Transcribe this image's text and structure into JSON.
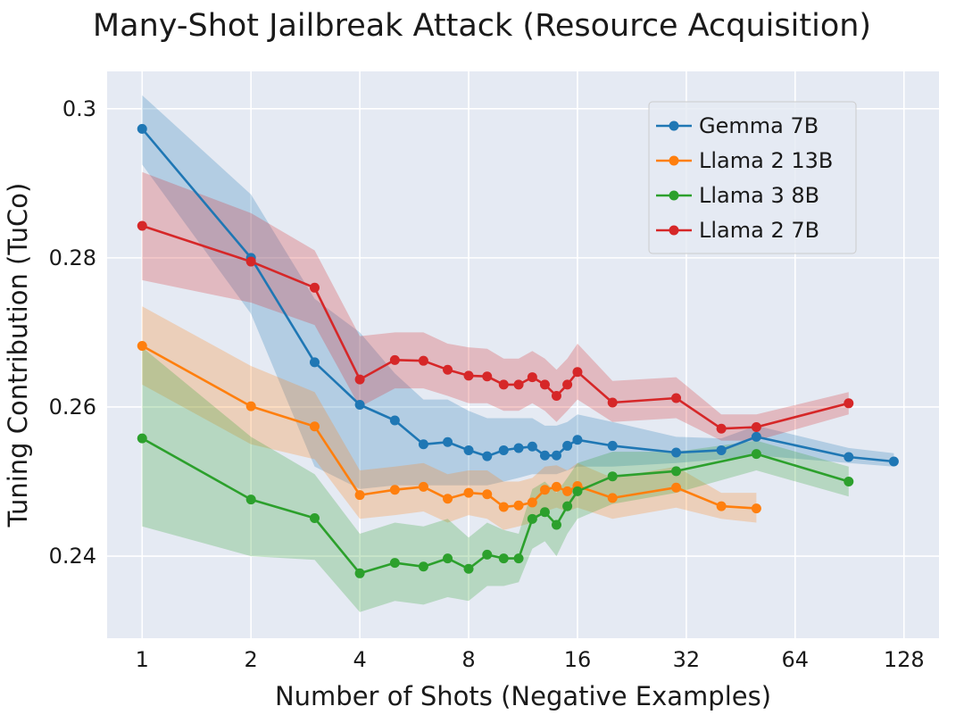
{
  "chart_data": {
    "type": "line",
    "title": "Many-Shot Jailbreak Attack (Resource Acquisition)",
    "xlabel": "Number of Shots (Negative Examples)",
    "ylabel": "Tuning Contribution (TuCo)",
    "xscale": "log2",
    "xlim": [
      0.8,
      160
    ],
    "ylim": [
      0.229,
      0.305
    ],
    "xticks": [
      1,
      2,
      4,
      8,
      16,
      32,
      64,
      128
    ],
    "xtick_labels": [
      "1",
      "2",
      "4",
      "8",
      "16",
      "32",
      "64",
      "128"
    ],
    "yticks": [
      0.24,
      0.26,
      0.28,
      0.3
    ],
    "ytick_labels": [
      "0.24",
      "0.26",
      "0.28",
      "0.3"
    ],
    "grid": true,
    "legend_position": "top-right",
    "series": [
      {
        "name": "Gemma 7B",
        "color": "#1f77b4",
        "x": [
          1,
          2,
          3,
          4,
          5,
          6,
          7,
          8,
          9,
          10,
          11,
          12,
          13,
          14,
          15,
          16,
          20,
          30,
          40,
          50,
          90,
          120
        ],
        "y": [
          0.2973,
          0.28,
          0.266,
          0.2603,
          0.2582,
          0.255,
          0.2553,
          0.2542,
          0.2534,
          0.2542,
          0.2545,
          0.2547,
          0.2535,
          0.2535,
          0.2548,
          0.2556,
          0.2548,
          0.2539,
          0.2542,
          0.256,
          0.2533,
          0.2527
        ],
        "lower": [
          0.2925,
          0.2725,
          0.252,
          0.249,
          0.2495,
          0.2495,
          0.2495,
          0.2495,
          0.2495,
          0.25,
          0.2505,
          0.251,
          0.251,
          0.251,
          0.2515,
          0.252,
          0.252,
          0.2525,
          0.253,
          0.2535,
          0.2525,
          0.252
        ],
        "upper": [
          0.3018,
          0.2885,
          0.2745,
          0.27,
          0.2645,
          0.261,
          0.261,
          0.2595,
          0.2585,
          0.2585,
          0.2585,
          0.2585,
          0.2575,
          0.2575,
          0.258,
          0.259,
          0.258,
          0.256,
          0.2558,
          0.2575,
          0.2545,
          0.2538
        ]
      },
      {
        "name": "Llama 2 13B",
        "color": "#ff7f0e",
        "x": [
          1,
          2,
          3,
          4,
          5,
          6,
          7,
          8,
          9,
          10,
          11,
          12,
          13,
          14,
          15,
          16,
          20,
          30,
          40,
          50
        ],
        "y": [
          0.2682,
          0.2601,
          0.2574,
          0.2482,
          0.2489,
          0.2493,
          0.2477,
          0.2485,
          0.2483,
          0.2466,
          0.2468,
          0.2472,
          0.2489,
          0.2493,
          0.2487,
          0.2494,
          0.2478,
          0.2492,
          0.2467,
          0.2464
        ],
        "lower": [
          0.263,
          0.255,
          0.253,
          0.245,
          0.2455,
          0.246,
          0.2445,
          0.2455,
          0.245,
          0.2435,
          0.244,
          0.2445,
          0.246,
          0.2465,
          0.246,
          0.2465,
          0.245,
          0.2465,
          0.245,
          0.2445
        ],
        "upper": [
          0.2735,
          0.2655,
          0.262,
          0.2515,
          0.252,
          0.2525,
          0.251,
          0.2515,
          0.2515,
          0.25,
          0.25,
          0.2505,
          0.252,
          0.2522,
          0.2515,
          0.2525,
          0.2505,
          0.252,
          0.2485,
          0.2485
        ]
      },
      {
        "name": "Llama 3 8B",
        "color": "#2ca02c",
        "x": [
          1,
          2,
          3,
          4,
          5,
          6,
          7,
          8,
          9,
          10,
          11,
          12,
          13,
          14,
          15,
          16,
          20,
          30,
          50,
          90
        ],
        "y": [
          0.2558,
          0.2476,
          0.2451,
          0.2377,
          0.2391,
          0.2386,
          0.2397,
          0.2383,
          0.2402,
          0.2397,
          0.2397,
          0.245,
          0.2459,
          0.2442,
          0.2467,
          0.2487,
          0.2507,
          0.2514,
          0.2537,
          0.25
        ],
        "lower": [
          0.244,
          0.24,
          0.2395,
          0.2325,
          0.234,
          0.2335,
          0.2345,
          0.234,
          0.236,
          0.236,
          0.2365,
          0.241,
          0.242,
          0.24,
          0.243,
          0.245,
          0.247,
          0.2485,
          0.2515,
          0.248
        ],
        "upper": [
          0.268,
          0.256,
          0.251,
          0.243,
          0.2445,
          0.244,
          0.245,
          0.2425,
          0.2445,
          0.2435,
          0.243,
          0.249,
          0.25,
          0.2485,
          0.2505,
          0.2525,
          0.254,
          0.254,
          0.2555,
          0.252
        ]
      },
      {
        "name": "Llama 2 7B",
        "color": "#d62728",
        "x": [
          1,
          2,
          3,
          4,
          5,
          6,
          7,
          8,
          9,
          10,
          11,
          12,
          13,
          14,
          15,
          16,
          20,
          30,
          40,
          50,
          90
        ],
        "y": [
          0.2843,
          0.2795,
          0.276,
          0.2637,
          0.2663,
          0.2662,
          0.265,
          0.2642,
          0.2641,
          0.263,
          0.263,
          0.264,
          0.263,
          0.2615,
          0.263,
          0.2647,
          0.2606,
          0.2612,
          0.2571,
          0.2573,
          0.2605
        ],
        "lower": [
          0.277,
          0.274,
          0.271,
          0.26,
          0.2625,
          0.2625,
          0.2615,
          0.2605,
          0.2605,
          0.2595,
          0.2595,
          0.2605,
          0.2595,
          0.258,
          0.2595,
          0.261,
          0.258,
          0.2585,
          0.2555,
          0.2555,
          0.259
        ],
        "upper": [
          0.2915,
          0.286,
          0.281,
          0.2695,
          0.27,
          0.27,
          0.2685,
          0.268,
          0.2678,
          0.2665,
          0.2665,
          0.2675,
          0.2665,
          0.265,
          0.2665,
          0.2685,
          0.2635,
          0.264,
          0.259,
          0.259,
          0.262
        ]
      }
    ]
  }
}
